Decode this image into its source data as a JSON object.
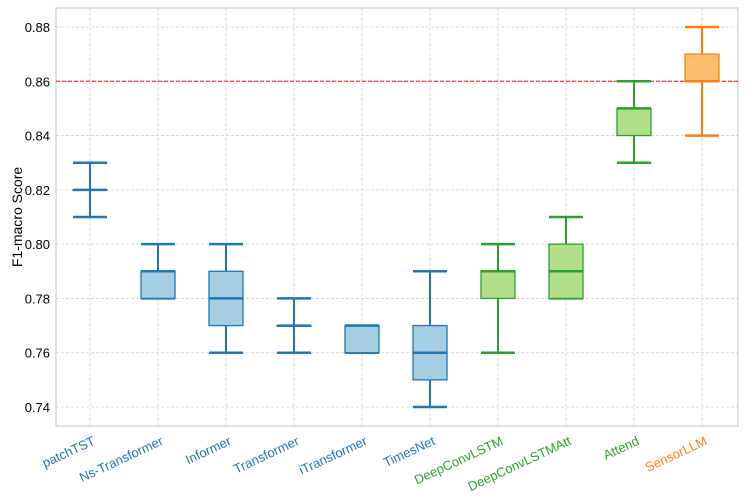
{
  "chart_data": {
    "type": "box",
    "title": "",
    "xlabel": "",
    "ylabel": "F1-macro Score",
    "ylim": [
      0.733,
      0.887
    ],
    "yticks": [
      "0.74",
      "0.76",
      "0.78",
      "0.80",
      "0.82",
      "0.84",
      "0.86",
      "0.88"
    ],
    "grid": true,
    "reference_line": {
      "y": 0.86,
      "color": "#ff0000",
      "style": "dashed"
    },
    "categories": [
      "patchTST",
      "Ns-Transformer",
      "Informer",
      "Transformer",
      "iTransformer",
      "TimesNet",
      "DeepConvLSTM",
      "DeepConvLSTMAtt",
      "Attend",
      "SensorLLM"
    ],
    "boxes": [
      {
        "min": 0.81,
        "q1": 0.82,
        "median": 0.82,
        "q3": 0.82,
        "max": 0.83,
        "group": "blue"
      },
      {
        "min": 0.78,
        "q1": 0.78,
        "median": 0.79,
        "q3": 0.79,
        "max": 0.8,
        "group": "blue"
      },
      {
        "min": 0.76,
        "q1": 0.77,
        "median": 0.78,
        "q3": 0.79,
        "max": 0.8,
        "group": "blue"
      },
      {
        "min": 0.76,
        "q1": 0.77,
        "median": 0.77,
        "q3": 0.77,
        "max": 0.78,
        "group": "blue"
      },
      {
        "min": 0.76,
        "q1": 0.76,
        "median": 0.77,
        "q3": 0.77,
        "max": 0.77,
        "group": "blue"
      },
      {
        "min": 0.74,
        "q1": 0.75,
        "median": 0.76,
        "q3": 0.77,
        "max": 0.79,
        "group": "blue"
      },
      {
        "min": 0.76,
        "q1": 0.78,
        "median": 0.79,
        "q3": 0.79,
        "max": 0.8,
        "group": "green"
      },
      {
        "min": 0.78,
        "q1": 0.78,
        "median": 0.79,
        "q3": 0.8,
        "max": 0.81,
        "group": "green"
      },
      {
        "min": 0.83,
        "q1": 0.84,
        "median": 0.85,
        "q3": 0.85,
        "max": 0.86,
        "group": "green"
      },
      {
        "min": 0.84,
        "q1": 0.86,
        "median": 0.86,
        "q3": 0.87,
        "max": 0.88,
        "group": "orange"
      }
    ],
    "colors": {
      "blue": {
        "line": "#1f77b4",
        "fill": "#a6cee3"
      },
      "green": {
        "line": "#2ca02c",
        "fill": "#b2df8a"
      },
      "orange": {
        "line": "#ff7f0e",
        "fill": "#fdbf6f"
      }
    }
  }
}
